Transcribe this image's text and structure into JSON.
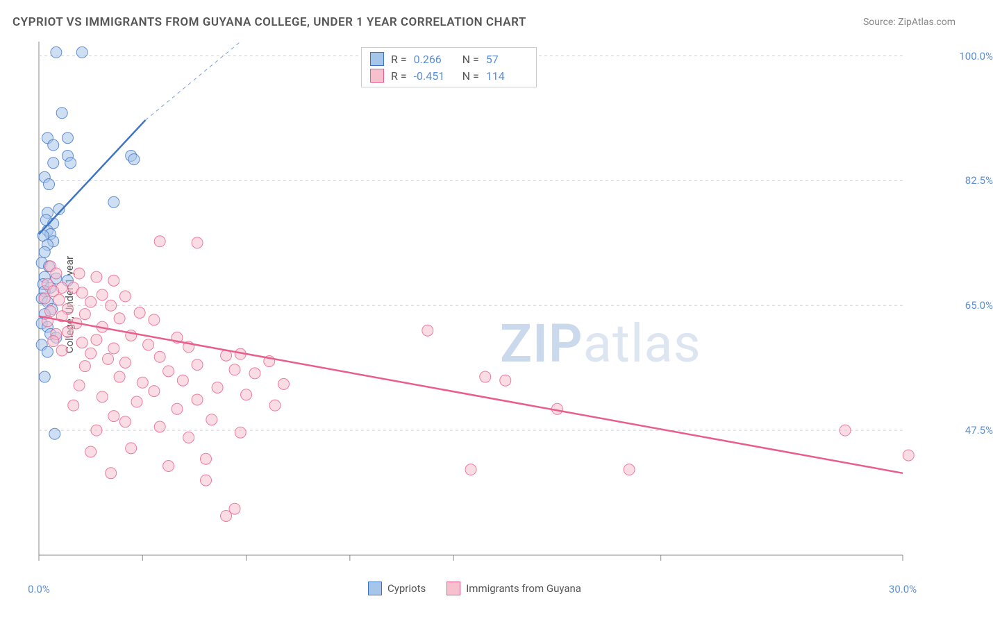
{
  "title": "CYPRIOT VS IMMIGRANTS FROM GUYANA COLLEGE, UNDER 1 YEAR CORRELATION CHART",
  "source_label": "Source:",
  "source_name": "ZipAtlas.com",
  "y_axis_label": "College, Under 1 year",
  "watermark_bold": "ZIP",
  "watermark_rest": "atlas",
  "chart": {
    "type": "scatter",
    "background_color": "#ffffff",
    "grid_color": "#d0d0d0",
    "axis_text_color": "#5b8fd6",
    "xlim": [
      0,
      30
    ],
    "ylim": [
      30,
      102
    ],
    "x_ticks": [
      0,
      30
    ],
    "x_tick_labels": [
      "0.0%",
      "30.0%"
    ],
    "x_minor_ticks": [
      3.6,
      7.2,
      10.8,
      14.4,
      21.6
    ],
    "y_ticks": [
      47.5,
      65.0,
      82.5,
      100.0
    ],
    "y_tick_labels": [
      "47.5%",
      "65.0%",
      "82.5%",
      "100.0%"
    ],
    "series": [
      {
        "name": "Cypriots",
        "fill_color": "#a6c5ea",
        "stroke_color": "#3d73c5",
        "marker_radius": 8,
        "marker_opacity": 0.55,
        "R": "0.266",
        "N": "57",
        "trend": {
          "x1": 0,
          "y1": 75,
          "x2": 3.7,
          "y2": 91,
          "dash_x2": 7.0,
          "dash_y2": 105,
          "width": 2.5
        },
        "points": [
          [
            0.6,
            100.5
          ],
          [
            1.5,
            100.5
          ],
          [
            0.8,
            92
          ],
          [
            0.3,
            88.5
          ],
          [
            1.0,
            88.5
          ],
          [
            0.5,
            87.5
          ],
          [
            1.0,
            86
          ],
          [
            0.5,
            85
          ],
          [
            1.1,
            85
          ],
          [
            0.2,
            83
          ],
          [
            0.35,
            82
          ],
          [
            0.3,
            78
          ],
          [
            0.7,
            78.5
          ],
          [
            3.2,
            86
          ],
          [
            3.3,
            85.5
          ],
          [
            0.25,
            77
          ],
          [
            0.5,
            76.5
          ],
          [
            0.3,
            75.5
          ],
          [
            0.4,
            75
          ],
          [
            0.15,
            74.8
          ],
          [
            0.5,
            74
          ],
          [
            0.3,
            73.5
          ],
          [
            0.2,
            72.5
          ],
          [
            2.6,
            79.5
          ],
          [
            0.1,
            71
          ],
          [
            0.35,
            70.5
          ],
          [
            0.2,
            69
          ],
          [
            0.6,
            68.8
          ],
          [
            1.0,
            68.5
          ],
          [
            0.15,
            68
          ],
          [
            0.4,
            67.5
          ],
          [
            0.2,
            67
          ],
          [
            0.1,
            66
          ],
          [
            0.3,
            65.5
          ],
          [
            0.45,
            64.5
          ],
          [
            0.2,
            63.8
          ],
          [
            0.1,
            62.5
          ],
          [
            0.3,
            62
          ],
          [
            0.4,
            61
          ],
          [
            0.6,
            60.5
          ],
          [
            0.1,
            59.5
          ],
          [
            0.3,
            58.5
          ],
          [
            0.2,
            55
          ],
          [
            0.55,
            47
          ]
        ]
      },
      {
        "name": "Immigrants from Guyana",
        "fill_color": "#f6c0ce",
        "stroke_color": "#e85d8a",
        "marker_radius": 8,
        "marker_opacity": 0.55,
        "R": "-0.451",
        "N": "114",
        "trend": {
          "x1": 0,
          "y1": 63.5,
          "x2": 30,
          "y2": 41.5,
          "width": 2.5
        },
        "points": [
          [
            4.2,
            74
          ],
          [
            5.5,
            73.8
          ],
          [
            0.4,
            70.5
          ],
          [
            0.6,
            69.5
          ],
          [
            1.4,
            69.5
          ],
          [
            2.0,
            69
          ],
          [
            2.6,
            68.5
          ],
          [
            0.3,
            68
          ],
          [
            0.8,
            67.5
          ],
          [
            1.2,
            67.5
          ],
          [
            0.5,
            67
          ],
          [
            1.5,
            66.8
          ],
          [
            2.2,
            66.5
          ],
          [
            3.0,
            66.3
          ],
          [
            0.2,
            66
          ],
          [
            0.7,
            65.8
          ],
          [
            1.8,
            65.5
          ],
          [
            2.5,
            65
          ],
          [
            1.0,
            64.5
          ],
          [
            0.4,
            64.2
          ],
          [
            3.5,
            64
          ],
          [
            1.6,
            63.8
          ],
          [
            0.8,
            63.5
          ],
          [
            2.8,
            63.2
          ],
          [
            4.0,
            63
          ],
          [
            0.3,
            62.8
          ],
          [
            1.3,
            62.5
          ],
          [
            2.2,
            62
          ],
          [
            0.6,
            61
          ],
          [
            1.0,
            61.3
          ],
          [
            3.2,
            60.8
          ],
          [
            4.8,
            60.5
          ],
          [
            2.0,
            60.2
          ],
          [
            0.5,
            60
          ],
          [
            1.5,
            59.8
          ],
          [
            3.8,
            59.5
          ],
          [
            5.2,
            59.2
          ],
          [
            2.6,
            59
          ],
          [
            0.8,
            58.7
          ],
          [
            1.8,
            58.3
          ],
          [
            6.5,
            58
          ],
          [
            7.0,
            58.2
          ],
          [
            4.2,
            57.8
          ],
          [
            2.4,
            57.5
          ],
          [
            8.0,
            57.2
          ],
          [
            3.0,
            57
          ],
          [
            5.5,
            56.7
          ],
          [
            1.6,
            56.5
          ],
          [
            6.8,
            56
          ],
          [
            4.5,
            55.8
          ],
          [
            7.5,
            55.5
          ],
          [
            13.5,
            61.5
          ],
          [
            2.8,
            55
          ],
          [
            5.0,
            54.5
          ],
          [
            3.6,
            54.2
          ],
          [
            8.5,
            54
          ],
          [
            1.4,
            53.8
          ],
          [
            6.2,
            53.5
          ],
          [
            4.0,
            53
          ],
          [
            7.2,
            52.5
          ],
          [
            2.2,
            52.2
          ],
          [
            5.5,
            51.8
          ],
          [
            15.5,
            55
          ],
          [
            16.2,
            54.5
          ],
          [
            3.4,
            51.5
          ],
          [
            1.2,
            51
          ],
          [
            4.8,
            50.5
          ],
          [
            8.2,
            51
          ],
          [
            2.6,
            49.5
          ],
          [
            6.0,
            49
          ],
          [
            3.0,
            48.7
          ],
          [
            18.0,
            50.5
          ],
          [
            4.2,
            48
          ],
          [
            2.0,
            47.5
          ],
          [
            7.0,
            47.2
          ],
          [
            5.2,
            46.5
          ],
          [
            28.0,
            47.5
          ],
          [
            3.2,
            45
          ],
          [
            1.8,
            44.5
          ],
          [
            5.8,
            43.5
          ],
          [
            30.2,
            44
          ],
          [
            4.5,
            42.5
          ],
          [
            20.5,
            42
          ],
          [
            2.5,
            41.5
          ],
          [
            5.8,
            40.5
          ],
          [
            15.0,
            42
          ],
          [
            6.8,
            36.5
          ],
          [
            6.5,
            35.5
          ]
        ]
      }
    ]
  },
  "legend_top_labels": {
    "R": "R =",
    "N": "N ="
  },
  "legend_bottom": [
    "Cypriots",
    "Immigrants from Guyana"
  ]
}
